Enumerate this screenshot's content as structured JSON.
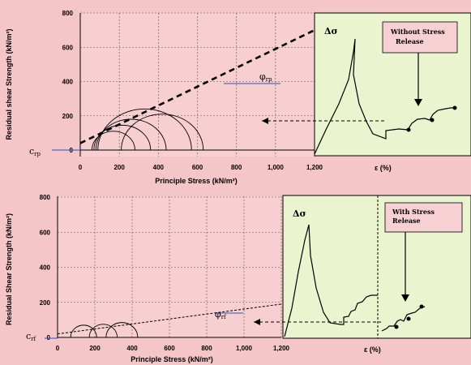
{
  "colors": {
    "page": "#f5c6c8",
    "plot_bg": "#f7cfd1",
    "panel_bg": "#eaf5cf",
    "callout_bg": "#f7d0d4",
    "blue": "#2f4fbf"
  },
  "chart_data": [
    {
      "type": "line",
      "name": "top",
      "xlabel": "Principle Stress (kN/m²)",
      "ylabel": "Residual shear Strength (kN/m²)",
      "xlim": [
        0,
        1200
      ],
      "ylim": [
        -40,
        800
      ],
      "xticks": [
        0,
        200,
        400,
        600,
        800,
        1000,
        1200
      ],
      "xtick_labels": [
        "0",
        "200",
        "400",
        "600",
        "800",
        "1,000",
        "1,200"
      ],
      "yticks": [
        0,
        200,
        400,
        600,
        800
      ],
      "ytick_labels": [
        "0",
        "200",
        "400",
        "600",
        "800"
      ],
      "grid": true,
      "intercept_label": "c",
      "intercept_sub": "rp",
      "angle_label": "φ",
      "angle_sub": "rp",
      "envelope": {
        "x": [
          0,
          1200
        ],
        "y": [
          40,
          700
        ],
        "style": "dashed-thick"
      },
      "mohr_circles": [
        {
          "center": 170,
          "radius": 110
        },
        {
          "center": 215,
          "radius": 145
        },
        {
          "center": 260,
          "radius": 180
        },
        {
          "center": 330,
          "radius": 240
        },
        {
          "center": 420,
          "radius": 210
        }
      ],
      "inset": {
        "sigma_label": "Δσ",
        "strain_label": "ε (%)",
        "callout": [
          "Without Stress",
          "Release"
        ]
      }
    },
    {
      "type": "line",
      "name": "bottom",
      "xlabel": "Principle Stress (kN/m²)",
      "ylabel": "Residual Shear Strength (kN/m²)",
      "xlim": [
        0,
        1200
      ],
      "ylim": [
        -20,
        800
      ],
      "xticks": [
        0,
        200,
        400,
        600,
        800,
        1000,
        1200
      ],
      "xtick_labels": [
        "0",
        "200",
        "400",
        "600",
        "800",
        "1,000",
        "1,200"
      ],
      "yticks": [
        0,
        200,
        400,
        600,
        800
      ],
      "ytick_labels": [
        "0",
        "200",
        "400",
        "600",
        "800"
      ],
      "grid": true,
      "intercept_label": "c",
      "intercept_sub": "rf",
      "angle_label": "φ",
      "angle_sub": "rf",
      "envelope": {
        "x": [
          0,
          1200
        ],
        "y": [
          20,
          190
        ],
        "style": "dashed-thin"
      },
      "mohr_circles": [
        {
          "center": 140,
          "radius": 70
        },
        {
          "center": 245,
          "radius": 75
        },
        {
          "center": 345,
          "radius": 85
        }
      ],
      "inset": {
        "sigma_label": "Δσ",
        "strain_label": "ε (%)",
        "callout": [
          "With Stress",
          "Release"
        ]
      }
    }
  ]
}
